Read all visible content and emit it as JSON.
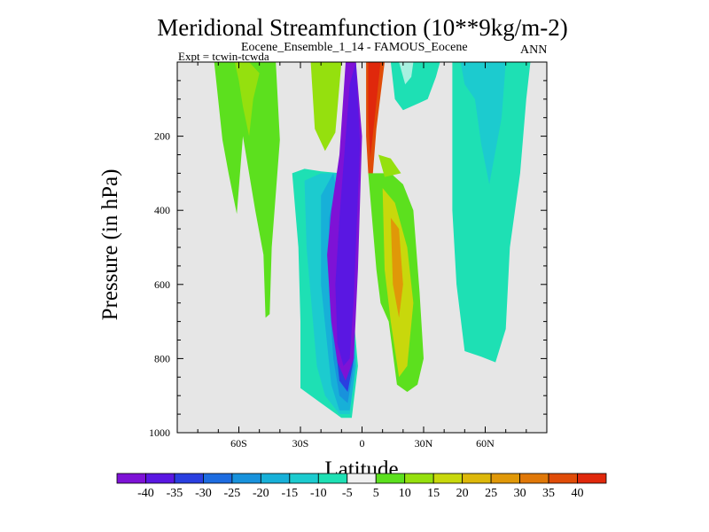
{
  "chart_data": {
    "type": "heatmap",
    "title": "Meridional Streamfunction (10**9kg/m-2)",
    "subtitle": "Eocene_Ensemble_1_14 - FAMOUS_Eocene",
    "experiment": "Expt = tcwin-tcwda",
    "season": "ANN",
    "xlabel": "Latitude",
    "ylabel": "Pressure (in hPa)",
    "xlim": [
      -90,
      90
    ],
    "ylim": [
      1000,
      0
    ],
    "x_ticks": [
      {
        "value": -60,
        "label": "60S"
      },
      {
        "value": -30,
        "label": "30S"
      },
      {
        "value": 0,
        "label": "0"
      },
      {
        "value": 30,
        "label": "30N"
      },
      {
        "value": 60,
        "label": "60N"
      }
    ],
    "y_ticks": [
      {
        "value": 200,
        "label": "200"
      },
      {
        "value": 400,
        "label": "400"
      },
      {
        "value": 600,
        "label": "600"
      },
      {
        "value": 800,
        "label": "800"
      },
      {
        "value": 1000,
        "label": "1000"
      }
    ],
    "background_color": "#e6e6e6",
    "colorbar": {
      "labels": [
        "-40",
        "-35",
        "-30",
        "-25",
        "-20",
        "-15",
        "-10",
        "-5",
        "5",
        "10",
        "15",
        "20",
        "25",
        "30",
        "35",
        "40"
      ],
      "colors": [
        "#7e12d6",
        "#5a17e2",
        "#2a3fe0",
        "#1d6ce0",
        "#1892dc",
        "#17b0d8",
        "#1ccbcf",
        "#1ee0b4",
        "#f0f0f0",
        "#5ce01e",
        "#95e00e",
        "#c8d80c",
        "#ddb80a",
        "#e09808",
        "#e07808",
        "#e04c08",
        "#e0280c"
      ]
    },
    "regions": [
      {
        "name": "green-south-60",
        "color": "#5ce01e",
        "points": [
          [
            -72,
            0
          ],
          [
            -52,
            0
          ],
          [
            -42,
            0
          ],
          [
            -40,
            210
          ],
          [
            -44,
            500
          ],
          [
            -45,
            680
          ],
          [
            -47,
            690
          ],
          [
            -48,
            520
          ],
          [
            -52,
            400
          ],
          [
            -58,
            200
          ],
          [
            -61,
            410
          ],
          [
            -65,
            300
          ],
          [
            -68,
            210
          ]
        ]
      },
      {
        "name": "yellowgreen-south-60",
        "color": "#95e00e",
        "points": [
          [
            -62,
            0
          ],
          [
            -55,
            0
          ],
          [
            -50,
            30
          ],
          [
            -53,
            100
          ],
          [
            -55,
            200
          ],
          [
            -58,
            120
          ],
          [
            -60,
            50
          ]
        ]
      },
      {
        "name": "cyan-south-30",
        "color": "#1ee0b4",
        "points": [
          [
            -34,
            300
          ],
          [
            -28,
            288
          ],
          [
            -20,
            295
          ],
          [
            -10,
            300
          ],
          [
            -2,
            820
          ],
          [
            -5,
            960
          ],
          [
            -10,
            960
          ],
          [
            -20,
            920
          ],
          [
            -30,
            880
          ],
          [
            -30,
            700
          ],
          [
            -31,
            500
          ]
        ]
      },
      {
        "name": "cyan-south-30-b",
        "color": "#1ccbcf",
        "points": [
          [
            -28,
            320
          ],
          [
            -20,
            300
          ],
          [
            -12,
            300
          ],
          [
            -3,
            820
          ],
          [
            -6,
            950
          ],
          [
            -11,
            950
          ],
          [
            -18,
            900
          ],
          [
            -22,
            820
          ],
          [
            -27,
            500
          ]
        ]
      },
      {
        "name": "blue-20",
        "color": "#17b0d8",
        "points": [
          [
            -20,
            360
          ],
          [
            -14,
            300
          ],
          [
            -6,
            500
          ],
          [
            -3,
            820
          ],
          [
            -6,
            940
          ],
          [
            -11,
            940
          ],
          [
            -15,
            870
          ],
          [
            -20,
            600
          ]
        ]
      },
      {
        "name": "blue-25",
        "color": "#1892dc",
        "points": [
          [
            -16,
            420
          ],
          [
            -11,
            300
          ],
          [
            -6,
            500
          ],
          [
            -4,
            820
          ],
          [
            -7,
            920
          ],
          [
            -11,
            900
          ],
          [
            -14,
            800
          ],
          [
            -16,
            620
          ]
        ]
      },
      {
        "name": "blue-30",
        "color": "#2a3fe0",
        "points": [
          [
            -14,
            520
          ],
          [
            -10,
            320
          ],
          [
            -5,
            500
          ],
          [
            -4,
            800
          ],
          [
            -7,
            890
          ],
          [
            -11,
            860
          ],
          [
            -13,
            760
          ]
        ]
      },
      {
        "name": "purple-40",
        "color": "#7e12d6",
        "points": [
          [
            -8,
            0
          ],
          [
            -3,
            0
          ],
          [
            0,
            200
          ],
          [
            -2,
            560
          ],
          [
            -4,
            800
          ],
          [
            -8,
            860
          ],
          [
            -12,
            810
          ],
          [
            -15,
            700
          ],
          [
            -17,
            520
          ],
          [
            -15,
            400
          ],
          [
            -11,
            250
          ]
        ]
      },
      {
        "name": "purple-35",
        "color": "#5a17e2",
        "points": [
          [
            -6,
            60
          ],
          [
            -3,
            0
          ],
          [
            -1,
            220
          ],
          [
            -4,
            640
          ],
          [
            -6,
            800
          ],
          [
            -9,
            820
          ],
          [
            -12,
            760
          ],
          [
            -13,
            600
          ],
          [
            -11,
            420
          ]
        ]
      },
      {
        "name": "orange-north-equator",
        "color": "#e04c08",
        "points": [
          [
            2,
            0
          ],
          [
            11,
            0
          ],
          [
            7,
            180
          ],
          [
            5,
            320
          ],
          [
            3,
            300
          ],
          [
            2,
            200
          ]
        ]
      },
      {
        "name": "red-north-equator",
        "color": "#e0280c",
        "points": [
          [
            3,
            0
          ],
          [
            9,
            0
          ],
          [
            6,
            160
          ],
          [
            4,
            260
          ],
          [
            3,
            150
          ]
        ]
      },
      {
        "name": "green-north-20",
        "color": "#5ce01e",
        "points": [
          [
            3,
            300
          ],
          [
            14,
            300
          ],
          [
            20,
            330
          ],
          [
            25,
            400
          ],
          [
            28,
            620
          ],
          [
            30,
            800
          ],
          [
            27,
            870
          ],
          [
            22,
            890
          ],
          [
            17,
            870
          ],
          [
            13,
            700
          ],
          [
            9,
            650
          ],
          [
            7,
            560
          ]
        ]
      },
      {
        "name": "yellow-north-20",
        "color": "#c8d80c",
        "points": [
          [
            10,
            340
          ],
          [
            16,
            380
          ],
          [
            22,
            500
          ],
          [
            25,
            650
          ],
          [
            22,
            820
          ],
          [
            18,
            850
          ],
          [
            14,
            700
          ],
          [
            11,
            560
          ]
        ]
      },
      {
        "name": "orange-north-20",
        "color": "#e09808",
        "points": [
          [
            14,
            420
          ],
          [
            18,
            450
          ],
          [
            20,
            600
          ],
          [
            18,
            690
          ],
          [
            15,
            600
          ]
        ]
      },
      {
        "name": "yellow-north-20-top",
        "color": "#95e00e",
        "points": [
          [
            8,
            250
          ],
          [
            14,
            260
          ],
          [
            19,
            300
          ],
          [
            11,
            310
          ]
        ]
      },
      {
        "name": "orange-south-10",
        "color": "#e07808",
        "points": [
          [
            -22,
            0
          ],
          [
            -12,
            0
          ],
          [
            -14,
            120
          ],
          [
            -16,
            200
          ],
          [
            -19,
            140
          ]
        ]
      },
      {
        "name": "red-south-10",
        "color": "#e0280c",
        "points": [
          [
            -19,
            0
          ],
          [
            -14,
            0
          ],
          [
            -15,
            100
          ],
          [
            -17,
            120
          ]
        ]
      },
      {
        "name": "yellow-south-10",
        "color": "#ddb80a",
        "points": [
          [
            -24,
            0
          ],
          [
            -11,
            0
          ],
          [
            -13,
            150
          ],
          [
            -17,
            220
          ],
          [
            -22,
            150
          ]
        ]
      },
      {
        "name": "green-south-10",
        "color": "#95e00e",
        "points": [
          [
            -25,
            0
          ],
          [
            -10,
            0
          ],
          [
            -13,
            190
          ],
          [
            -18,
            240
          ],
          [
            -23,
            180
          ]
        ]
      },
      {
        "name": "cyan-north-30",
        "color": "#1ee0b4",
        "points": [
          [
            14,
            0
          ],
          [
            38,
            0
          ],
          [
            36,
            40
          ],
          [
            32,
            100
          ],
          [
            28,
            110
          ],
          [
            20,
            130
          ],
          [
            16,
            100
          ]
        ]
      },
      {
        "name": "cyan-north-30-light",
        "color": "#a8f0e0",
        "points": [
          [
            18,
            0
          ],
          [
            25,
            0
          ],
          [
            24,
            40
          ],
          [
            21,
            60
          ]
        ]
      },
      {
        "name": "cyan-north-60",
        "color": "#1ee0b4",
        "points": [
          [
            44,
            0
          ],
          [
            82,
            0
          ],
          [
            80,
            100
          ],
          [
            77,
            300
          ],
          [
            72,
            500
          ],
          [
            70,
            720
          ],
          [
            65,
            810
          ],
          [
            58,
            795
          ],
          [
            50,
            780
          ],
          [
            46,
            600
          ],
          [
            44,
            400
          ]
        ]
      },
      {
        "name": "cyan-north-60-dark",
        "color": "#1ccbcf",
        "points": [
          [
            48,
            0
          ],
          [
            70,
            0
          ],
          [
            68,
            150
          ],
          [
            62,
            330
          ],
          [
            58,
            220
          ],
          [
            55,
            100
          ],
          [
            50,
            60
          ]
        ]
      }
    ]
  }
}
